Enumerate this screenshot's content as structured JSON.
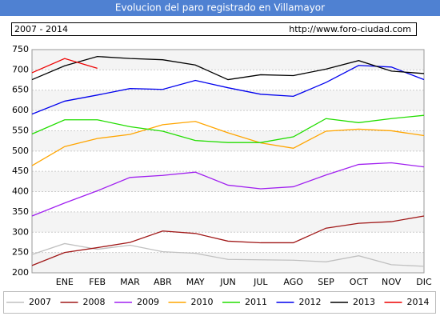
{
  "chart_data": {
    "type": "line",
    "title": "Evolucion del paro registrado en Villamayor",
    "subtitle": "2007 - 2014",
    "source": "http://www.foro-ciudad.com",
    "categories": [
      null,
      "ENE",
      "FEB",
      "MAR",
      "ABR",
      "MAY",
      "JUN",
      "JUL",
      "AGO",
      "SEP",
      "OCT",
      "NOV",
      "DIC"
    ],
    "ylim": [
      200,
      750
    ],
    "yticks": [
      200,
      250,
      300,
      350,
      400,
      450,
      500,
      550,
      600,
      650,
      700,
      750
    ],
    "grid": true,
    "legend": "bottom",
    "series": [
      {
        "name": "2007",
        "color": "#c0c0c0",
        "values": [
          245,
          272,
          258,
          268,
          252,
          248,
          233,
          232,
          231,
          227,
          242,
          220,
          216
        ]
      },
      {
        "name": "2008",
        "color": "#a01818",
        "values": [
          218,
          250,
          262,
          275,
          303,
          297,
          278,
          274,
          274,
          310,
          322,
          326,
          340
        ]
      },
      {
        "name": "2009",
        "color": "#a020f0",
        "values": [
          340,
          372,
          402,
          435,
          440,
          448,
          416,
          407,
          412,
          441,
          467,
          471,
          461
        ]
      },
      {
        "name": "2010",
        "color": "#ffa500",
        "values": [
          464,
          511,
          531,
          541,
          565,
          573,
          545,
          520,
          507,
          549,
          554,
          550,
          538
        ]
      },
      {
        "name": "2011",
        "color": "#22dd00",
        "values": [
          542,
          577,
          577,
          560,
          549,
          526,
          521,
          521,
          535,
          580,
          570,
          580,
          588
        ]
      },
      {
        "name": "2012",
        "color": "#0000ee",
        "values": [
          591,
          623,
          638,
          654,
          652,
          674,
          656,
          640,
          635,
          669,
          711,
          707,
          676
        ]
      },
      {
        "name": "2013",
        "color": "#000000",
        "values": [
          676,
          710,
          733,
          728,
          725,
          712,
          676,
          688,
          686,
          702,
          723,
          697,
          691
        ]
      },
      {
        "name": "2014",
        "color": "#ee0000",
        "values": [
          693,
          728,
          704,
          null,
          null,
          null,
          null,
          null,
          null,
          null,
          null,
          null,
          null
        ]
      }
    ]
  }
}
